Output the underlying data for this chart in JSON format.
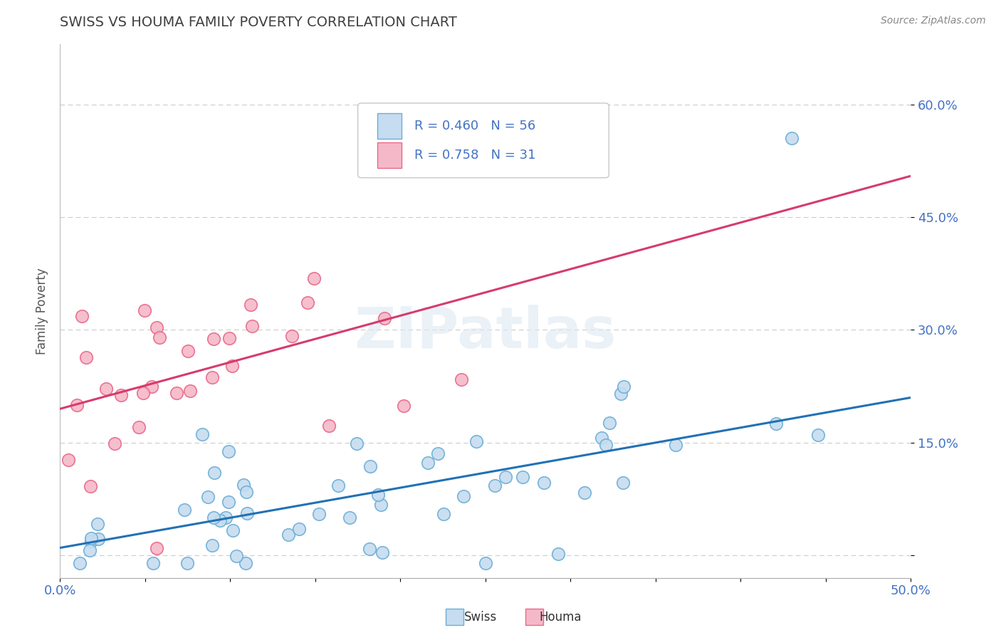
{
  "title": "SWISS VS HOUMA FAMILY POVERTY CORRELATION CHART",
  "source_text": "Source: ZipAtlas.com",
  "ylabel": "Family Poverty",
  "xlim": [
    0.0,
    0.5
  ],
  "ylim": [
    -0.03,
    0.68
  ],
  "xticks": [
    0.0,
    0.05,
    0.1,
    0.15,
    0.2,
    0.25,
    0.3,
    0.35,
    0.4,
    0.45,
    0.5
  ],
  "xticklabels": [
    "0.0%",
    "",
    "",
    "",
    "",
    "",
    "",
    "",
    "",
    "",
    "50.0%"
  ],
  "ytick_positions": [
    0.0,
    0.15,
    0.3,
    0.45,
    0.6
  ],
  "ytick_labels": [
    "",
    "15.0%",
    "30.0%",
    "45.0%",
    "60.0%"
  ],
  "swiss_edge_color": "#6baed6",
  "swiss_face_color": "#c6dcf0",
  "houma_edge_color": "#e8698a",
  "houma_face_color": "#f5b8c8",
  "swiss_R": 0.46,
  "swiss_N": 56,
  "houma_R": 0.758,
  "houma_N": 31,
  "swiss_line_color": "#2171b5",
  "houma_line_color": "#d63b6e",
  "swiss_line_intercept": 0.01,
  "swiss_line_slope": 0.4,
  "houma_line_intercept": 0.195,
  "houma_line_slope": 0.62,
  "watermark": "ZIPatlas",
  "background_color": "#ffffff",
  "grid_color": "#cccccc",
  "title_color": "#404040",
  "axis_label_color": "#555555",
  "tick_label_color": "#4472c4",
  "legend_text_color": "#4472c4"
}
